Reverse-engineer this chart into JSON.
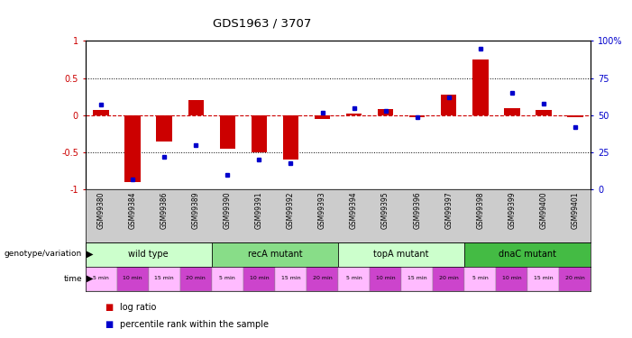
{
  "title": "GDS1963 / 3707",
  "samples": [
    "GSM99380",
    "GSM99384",
    "GSM99386",
    "GSM99389",
    "GSM99390",
    "GSM99391",
    "GSM99392",
    "GSM99393",
    "GSM99394",
    "GSM99395",
    "GSM99396",
    "GSM99397",
    "GSM99398",
    "GSM99399",
    "GSM99400",
    "GSM99401"
  ],
  "log_ratio": [
    0.07,
    -0.9,
    -0.35,
    0.2,
    -0.45,
    -0.5,
    -0.6,
    -0.05,
    0.02,
    0.08,
    -0.02,
    0.28,
    0.75,
    0.1,
    0.07,
    -0.02
  ],
  "percentile": [
    57,
    7,
    22,
    30,
    10,
    20,
    18,
    52,
    55,
    53,
    49,
    62,
    95,
    65,
    58,
    42
  ],
  "groups": [
    {
      "label": "wild type",
      "start": 0,
      "end": 4,
      "color": "#ccffcc"
    },
    {
      "label": "recA mutant",
      "start": 4,
      "end": 8,
      "color": "#88dd88"
    },
    {
      "label": "topA mutant",
      "start": 8,
      "end": 12,
      "color": "#ccffcc"
    },
    {
      "label": "dnaC mutant",
      "start": 12,
      "end": 16,
      "color": "#44bb44"
    }
  ],
  "times": [
    "5 min",
    "10 min",
    "15 min",
    "20 min",
    "5 min",
    "10 min",
    "15 min",
    "20 min",
    "5 min",
    "10 min",
    "15 min",
    "20 min",
    "5 min",
    "10 min",
    "15 min",
    "20 min"
  ],
  "time_colors": [
    "#ffbbff",
    "#cc44cc",
    "#ffbbff",
    "#cc44cc",
    "#ffbbff",
    "#cc44cc",
    "#ffbbff",
    "#cc44cc",
    "#ffbbff",
    "#cc44cc",
    "#ffbbff",
    "#cc44cc",
    "#ffbbff",
    "#cc44cc",
    "#ffbbff",
    "#cc44cc"
  ],
  "bar_color": "#cc0000",
  "dot_color": "#0000cc",
  "bg_color": "#ffffff",
  "label_bg": "#cccccc",
  "ylim_left": [
    -1,
    1
  ],
  "ylim_right": [
    0,
    100
  ],
  "yticks_left": [
    -1,
    -0.5,
    0,
    0.5,
    1
  ],
  "yticks_right": [
    0,
    25,
    50,
    75,
    100
  ],
  "ytick_labels_right": [
    "0",
    "25",
    "50",
    "75",
    "100%"
  ]
}
